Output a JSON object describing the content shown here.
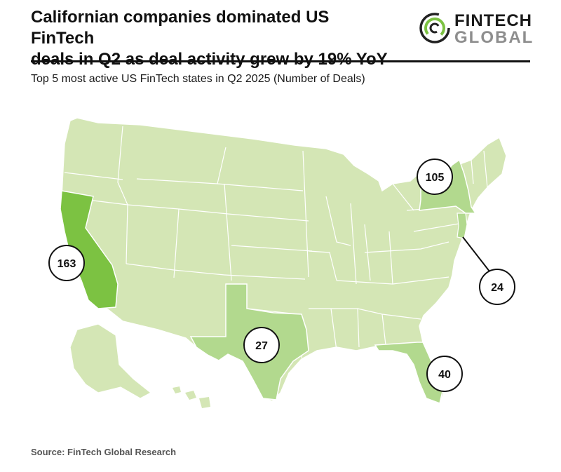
{
  "header": {
    "title_line1": "Californian companies dominated US FinTech",
    "title_line2": "deals in Q2 as deal activity grew by 19% YoY",
    "subtitle": "Top 5 most active US FinTech states in Q2 2025 (Number of Deals)"
  },
  "logo": {
    "line1": "FINTECH",
    "line2": "GLOBAL"
  },
  "colors": {
    "map_fill": "#d4e6b5",
    "map_border": "#ffffff",
    "highlight_strong": "#7cc242",
    "highlight_medium": "#b2d98e",
    "callout_border": "#111111",
    "logo_green": "#7cc242"
  },
  "states": [
    {
      "name": "California",
      "deals": "163",
      "shade": "strong"
    },
    {
      "name": "New York",
      "deals": "105",
      "shade": "medium"
    },
    {
      "name": "Florida",
      "deals": "40",
      "shade": "medium"
    },
    {
      "name": "Texas",
      "deals": "27",
      "shade": "medium"
    },
    {
      "name": "New Jersey",
      "deals": "24",
      "shade": "medium"
    }
  ],
  "footer": {
    "source": "Source: FinTech Global Research"
  }
}
